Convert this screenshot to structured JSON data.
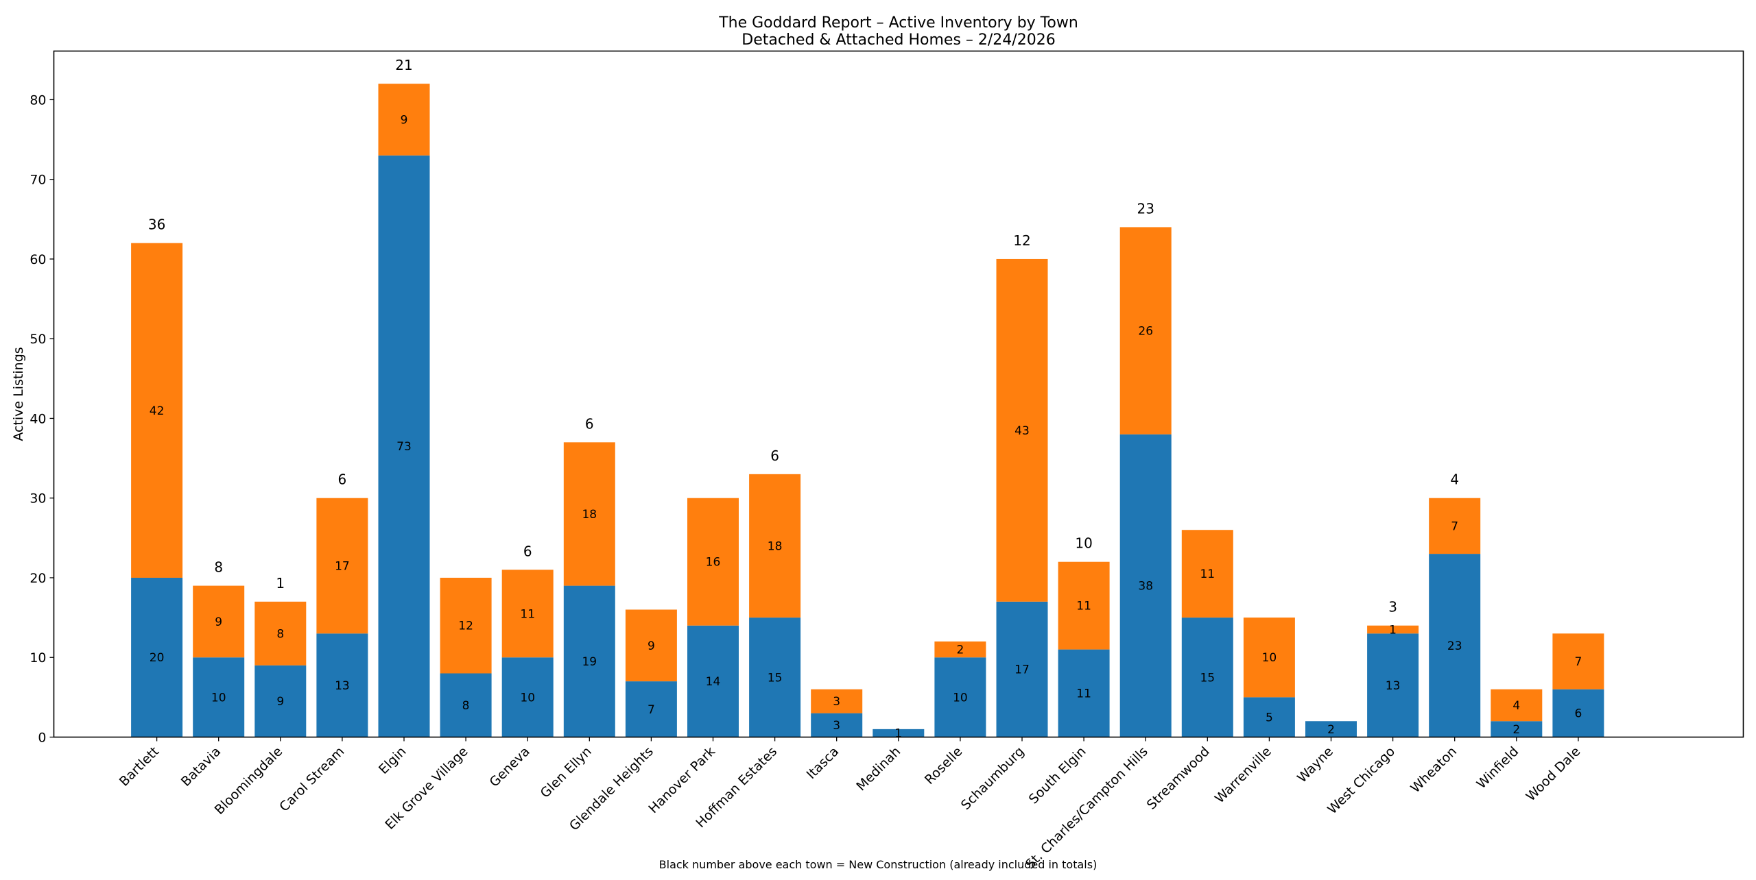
{
  "chart_data": {
    "type": "bar",
    "stacked": true,
    "title": "The Goddard Report – Active Inventory by Town",
    "subtitle": "Detached & Attached Homes – 2/24/2026",
    "xlabel": "",
    "ylabel": "Active Listings",
    "ylim": [
      0,
      86.1
    ],
    "yticks": [
      0,
      10,
      20,
      30,
      40,
      50,
      60,
      70,
      80
    ],
    "grid": false,
    "legend": "none",
    "footnote": "Black number above each town = New Construction (already included in totals)",
    "colors": {
      "bottom": "#1f77b4",
      "top": "#ff7f0e"
    },
    "categories": [
      "Bartlett",
      "Batavia",
      "Bloomingdale",
      "Carol Stream",
      "Elgin",
      "Elk Grove Village",
      "Geneva",
      "Glen Ellyn",
      "Glendale Heights",
      "Hanover Park",
      "Hoffman Estates",
      "Itasca",
      "Medinah",
      "Roselle",
      "Schaumburg",
      "South Elgin",
      "St. Charles/Campton Hills",
      "Streamwood",
      "Warrenville",
      "Wayne",
      "West Chicago",
      "Wheaton",
      "Winfield",
      "Wood Dale"
    ],
    "series": [
      {
        "values": [
          20,
          10,
          9,
          13,
          73,
          8,
          10,
          19,
          7,
          14,
          15,
          3,
          1,
          10,
          17,
          11,
          38,
          15,
          5,
          2,
          13,
          23,
          2,
          6
        ]
      },
      {
        "values": [
          42,
          9,
          8,
          17,
          9,
          12,
          11,
          18,
          9,
          16,
          18,
          3,
          0,
          2,
          43,
          11,
          26,
          11,
          10,
          0,
          1,
          7,
          4,
          7
        ]
      }
    ],
    "new_construction": [
      36,
      8,
      1,
      6,
      21,
      0,
      6,
      6,
      0,
      0,
      6,
      0,
      0,
      0,
      12,
      10,
      23,
      0,
      0,
      0,
      3,
      4,
      0,
      0
    ]
  }
}
